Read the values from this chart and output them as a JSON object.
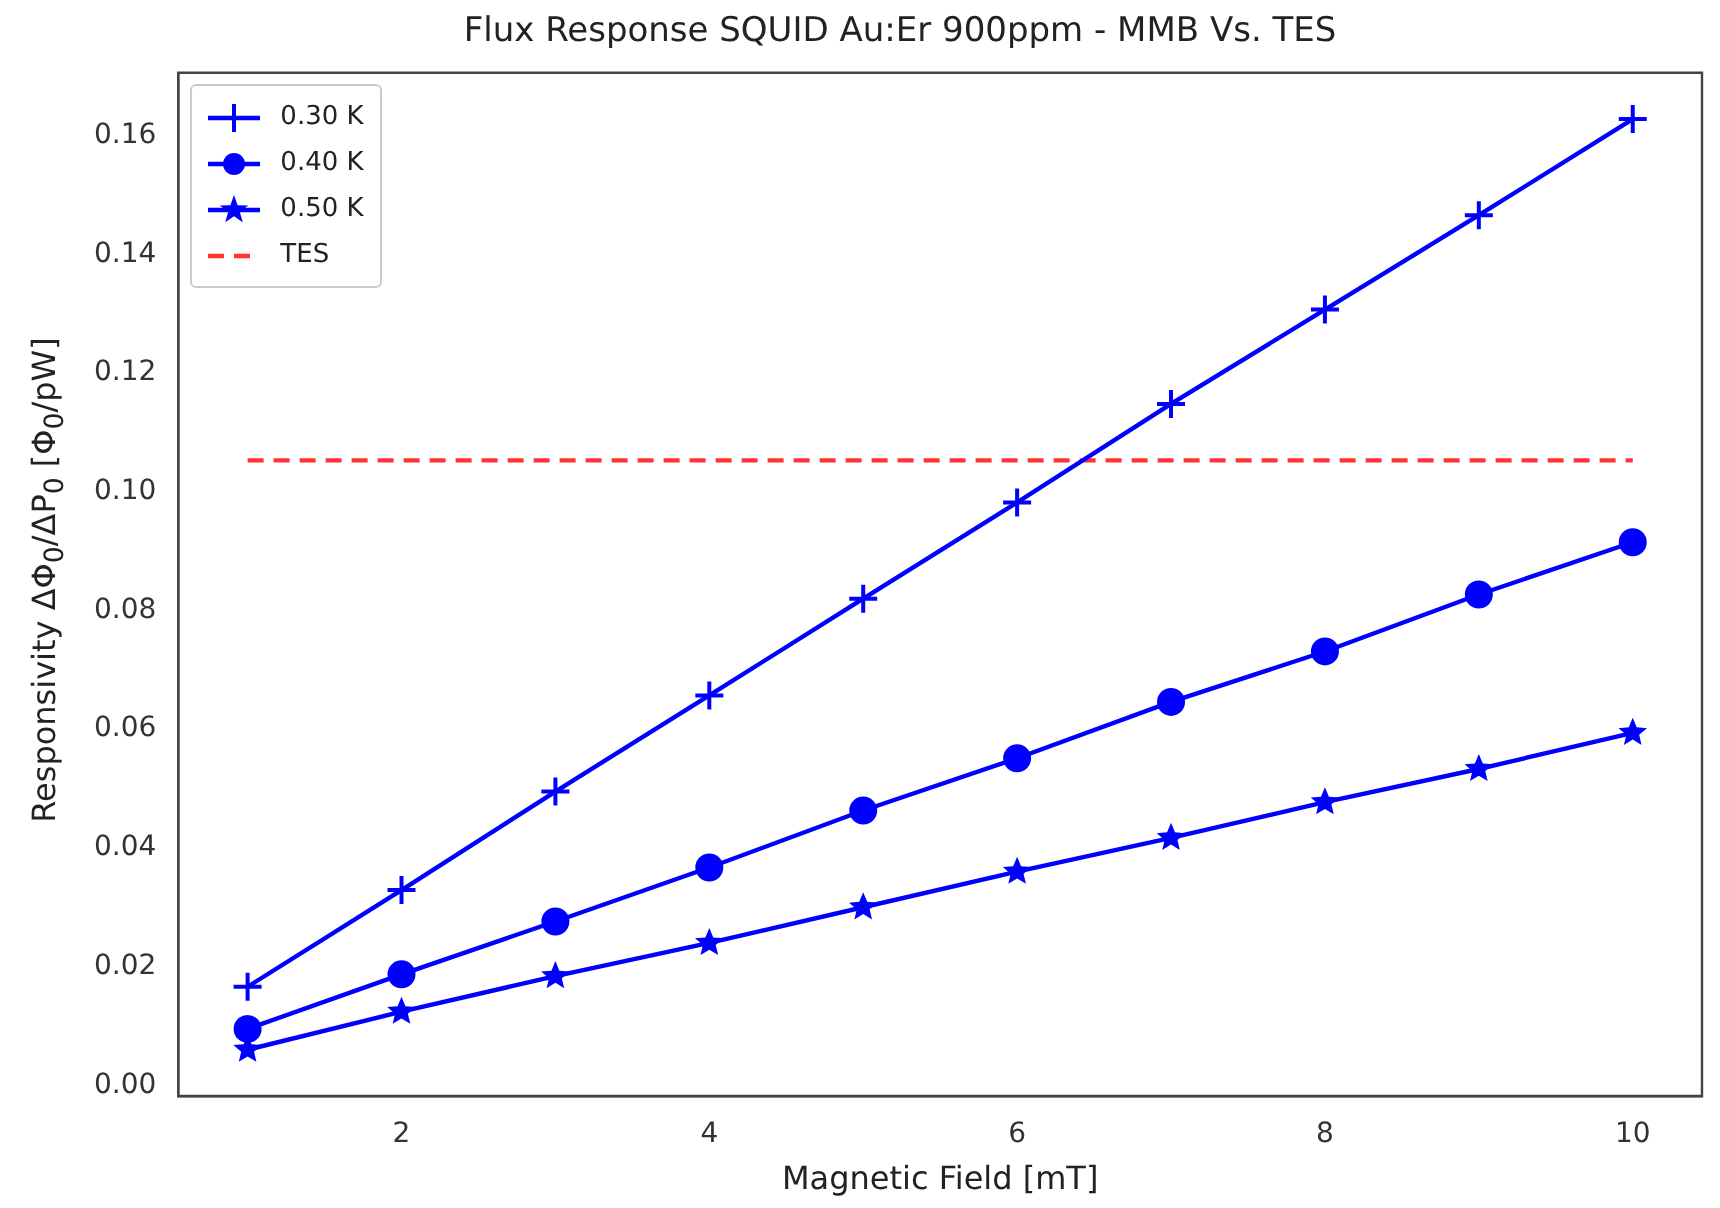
{
  "chart_data": {
    "type": "line",
    "title": "Flux Response SQUID Au:Er 900ppm - MMB Vs. TES",
    "xlabel": "Magnetic Field [mT]",
    "ylabel": "Responsivity ΔΦ$_{0}$/ΔP$_{0}$ [Φ$_{0}$/pW]",
    "x": [
      1,
      2,
      3,
      4,
      5,
      6,
      7,
      8,
      9,
      10
    ],
    "series": [
      {
        "name": "0.30 K",
        "color": "#0000ff",
        "marker": "cross",
        "values": [
          0.0166,
          0.0329,
          0.0495,
          0.0657,
          0.082,
          0.0982,
          0.1148,
          0.1307,
          0.1466,
          0.1628
        ]
      },
      {
        "name": "0.40 K",
        "color": "#0000ff",
        "marker": "circle",
        "values": [
          0.0095,
          0.0187,
          0.0276,
          0.0367,
          0.0463,
          0.0551,
          0.0646,
          0.0731,
          0.0827,
          0.0915
        ]
      },
      {
        "name": "0.50 K",
        "color": "#0000ff",
        "marker": "star",
        "values": [
          0.006,
          0.0124,
          0.0184,
          0.024,
          0.03,
          0.036,
          0.0417,
          0.0477,
          0.0533,
          0.0594
        ]
      },
      {
        "name": "TES",
        "color": "#ff3333",
        "marker": "none",
        "line_style": "dashed",
        "x": [
          1,
          10
        ],
        "values": [
          0.1053,
          0.1053
        ]
      }
    ],
    "xlim": [
      0.55,
      10.45
    ],
    "xticks": [
      2,
      4,
      6,
      8,
      10
    ],
    "ylim": [
      -0.0018,
      0.1706
    ],
    "yticks": [
      {
        "value": 0,
        "label": "0.00"
      },
      {
        "value": 0.02,
        "label": "0.02"
      },
      {
        "value": 0.04,
        "label": "0.04"
      },
      {
        "value": 0.06,
        "label": "0.06"
      },
      {
        "value": 0.08,
        "label": "0.08"
      },
      {
        "value": 0.1,
        "label": "0.10"
      },
      {
        "value": 0.12,
        "label": "0.12"
      },
      {
        "value": 0.14,
        "label": "0.14"
      },
      {
        "value": 0.16,
        "label": "0.16"
      }
    ],
    "legend": "top left",
    "line_style": "solid"
  }
}
